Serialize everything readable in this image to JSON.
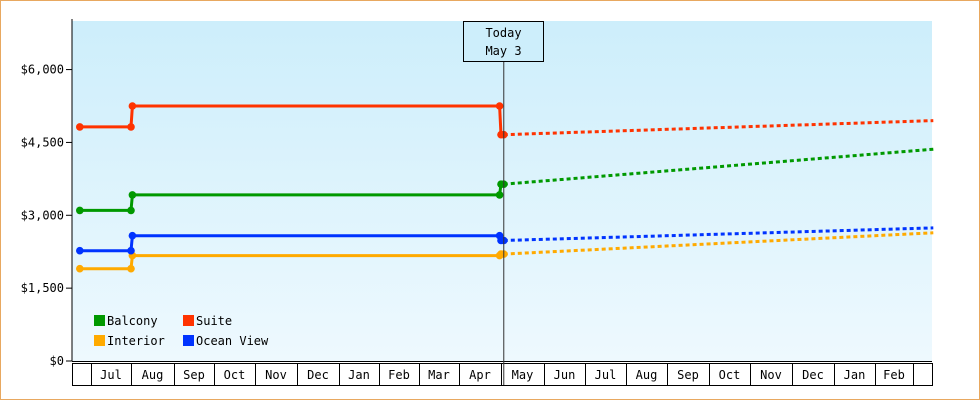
{
  "chart_data": {
    "type": "line",
    "y_ticks": [
      "$0",
      "$1,500",
      "$3,000",
      "$4,500",
      "$6,000"
    ],
    "y_tick_values": [
      0,
      1500,
      3000,
      4500,
      6000
    ],
    "ylim": [
      0,
      7000
    ],
    "x_ticks": [
      "Jul",
      "Aug",
      "Sep",
      "Oct",
      "Nov",
      "Dec",
      "Jan",
      "Feb",
      "Mar",
      "Apr",
      "May",
      "Jun",
      "Jul",
      "Aug",
      "Sep",
      "Oct",
      "Nov",
      "Dec",
      "Jan",
      "Feb"
    ],
    "today_marker": {
      "line1": "Today",
      "line2": "May 3"
    },
    "grid": false,
    "legend_position": "bottom-left",
    "series": [
      {
        "name": "Balcony",
        "color": "#009900",
        "actual": [
          [
            "2023-06-15",
            3100
          ],
          [
            "2023-08-01",
            3100
          ],
          [
            "2023-08-02",
            3420
          ],
          [
            "2024-04-30",
            3420
          ],
          [
            "2024-05-01",
            3640
          ],
          [
            "2024-05-03",
            3640
          ]
        ],
        "forecast": [
          [
            "2024-05-03",
            3640
          ],
          [
            "2025-03-31",
            4360
          ]
        ]
      },
      {
        "name": "Suite",
        "color": "#ff3300",
        "actual": [
          [
            "2023-06-15",
            4820
          ],
          [
            "2023-08-01",
            4820
          ],
          [
            "2023-08-02",
            5250
          ],
          [
            "2024-04-30",
            5250
          ],
          [
            "2024-05-01",
            4660
          ],
          [
            "2024-05-03",
            4660
          ]
        ],
        "forecast": [
          [
            "2024-05-03",
            4660
          ],
          [
            "2025-03-31",
            4950
          ]
        ]
      },
      {
        "name": "Interior",
        "color": "#ffaa00",
        "actual": [
          [
            "2023-06-15",
            1900
          ],
          [
            "2023-08-01",
            1900
          ],
          [
            "2023-08-02",
            2170
          ],
          [
            "2024-04-30",
            2170
          ],
          [
            "2024-05-01",
            2200
          ],
          [
            "2024-05-03",
            2200
          ]
        ],
        "forecast": [
          [
            "2024-05-03",
            2200
          ],
          [
            "2025-03-31",
            2640
          ]
        ]
      },
      {
        "name": "Ocean View",
        "color": "#0033ff",
        "actual": [
          [
            "2023-06-15",
            2270
          ],
          [
            "2023-08-01",
            2270
          ],
          [
            "2023-08-02",
            2580
          ],
          [
            "2024-04-30",
            2580
          ],
          [
            "2024-05-01",
            2480
          ],
          [
            "2024-05-03",
            2480
          ]
        ],
        "forecast": [
          [
            "2024-05-03",
            2480
          ],
          [
            "2025-03-31",
            2740
          ]
        ]
      }
    ]
  }
}
